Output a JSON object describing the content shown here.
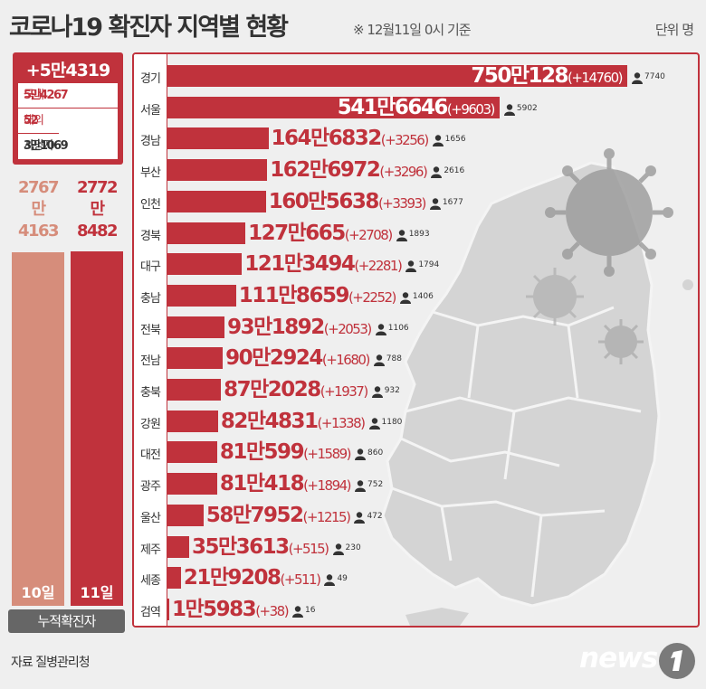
{
  "title": "코로나19 확진자 지역별 현황",
  "subtitle": "※ 12월11일 0시 기준",
  "unit": "단위 명",
  "summary": {
    "total": "+5만4319",
    "rows": [
      {
        "label": "국내",
        "value": "5만4267"
      },
      {
        "label": "해외",
        "value": "52"
      },
      {
        "label": "사망자",
        "value": "3만1069"
      }
    ]
  },
  "cumulative": {
    "label": "누적확진자",
    "prev": {
      "day": "10일",
      "value_line1": "2767만",
      "value_line2": "4163",
      "value": 27674163
    },
    "cur": {
      "day": "11일",
      "value_line1": "2772만",
      "value_line2": "8482",
      "value": 27728482
    }
  },
  "chart_data": {
    "type": "bar",
    "orientation": "horizontal",
    "title": "코로나19 확진자 지역별 현황",
    "subtitle": "※ 12월11일 0시 기준",
    "unit": "단위 명",
    "categories": [
      "경기",
      "서울",
      "경남",
      "부산",
      "인천",
      "경북",
      "대구",
      "충남",
      "전북",
      "전남",
      "충북",
      "강원",
      "대전",
      "광주",
      "울산",
      "제주",
      "세종",
      "검역"
    ],
    "series": [
      {
        "values": [
          7500128,
          5416646,
          1646832,
          1626972,
          1605638,
          1270665,
          1213494,
          1118659,
          931892,
          902924,
          872028,
          824831,
          810599,
          810418,
          587952,
          353613,
          219208,
          15983
        ]
      }
    ],
    "cumulative_labels": [
      "750만128",
      "541만6646",
      "164만6832",
      "162만6972",
      "160만5638",
      "127만665",
      "121만3494",
      "111만8659",
      "93만1892",
      "90만2924",
      "87만2028",
      "82만4831",
      "81만599",
      "81만418",
      "58만7952",
      "35만3613",
      "21만9208",
      "1만5983"
    ],
    "daily_new": [
      "(+14760)",
      "(+9603)",
      "(+3256)",
      "(+3296)",
      "(+3393)",
      "(+2708)",
      "(+2281)",
      "(+2252)",
      "(+2053)",
      "(+1680)",
      "(+1937)",
      "(+1338)",
      "(+1589)",
      "(+1894)",
      "(+1215)",
      "(+515)",
      "(+511)",
      "(+38)"
    ],
    "deaths": [
      "7740",
      "5902",
      "1656",
      "2616",
      "1677",
      "1893",
      "1794",
      "1406",
      "1106",
      "788",
      "932",
      "1180",
      "860",
      "752",
      "472",
      "230",
      "49",
      "16"
    ]
  },
  "colors": {
    "accent": "#c0323c",
    "prev_bar": "#d68d7b",
    "background": "#efefef",
    "label_bg": "#666666"
  },
  "source": "자료 질병관리청",
  "logo": "news1",
  "icons": {
    "person": "person-icon"
  }
}
